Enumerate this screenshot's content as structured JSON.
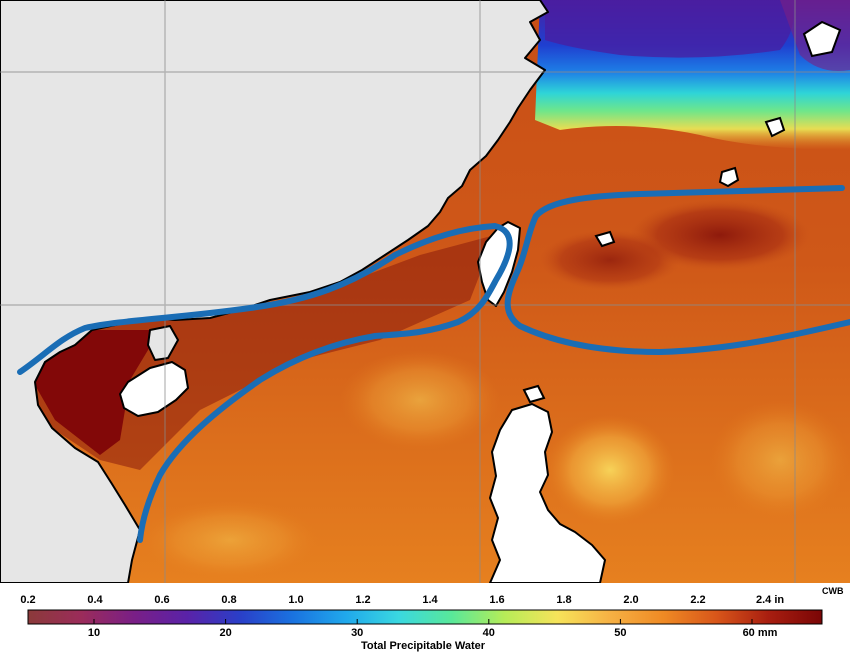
{
  "legend": {
    "title": "Total Precipitable Water",
    "credit": "CWB",
    "inch_ticks": [
      "0.2",
      "0.4",
      "0.6",
      "0.8",
      "1.0",
      "1.2",
      "1.4",
      "1.6",
      "1.8",
      "2.0",
      "2.2",
      "2.4 in"
    ],
    "mm_ticks": [
      "10",
      "20",
      "30",
      "40",
      "50",
      "60 mm"
    ],
    "colors": [
      "#8b3a3a",
      "#9b2c5a",
      "#7a1f86",
      "#5a22a8",
      "#2a3fc8",
      "#1a72e0",
      "#20a8ec",
      "#3ad8e0",
      "#58e89a",
      "#b6ec58",
      "#f6e35a",
      "#f6b144",
      "#ef8a24",
      "#d8561a",
      "#a81e10",
      "#7a0606"
    ]
  },
  "map": {
    "overlay_color": "#1a6db5",
    "land_color": "#e6e6e6",
    "coast_color": "#000000"
  }
}
